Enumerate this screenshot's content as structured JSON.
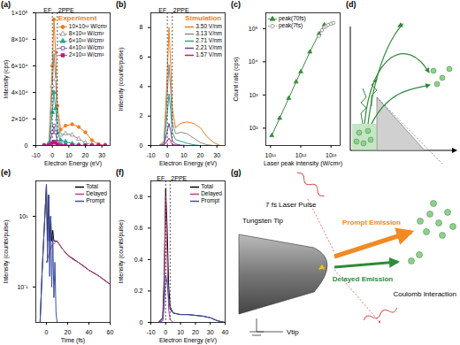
{
  "chart_data": [
    {
      "panel_label": "(a)",
      "type": "line",
      "legend_title": "Experiment",
      "legend": "top-right",
      "x_label": "Electron Energy (eV)",
      "y_label": "Intensity (cps)",
      "xlim": [
        -10,
        35
      ],
      "xticks": [
        -10,
        0,
        10,
        20,
        30
      ],
      "ylim": [
        0,
        100000
      ],
      "yticks": [
        0,
        {
          "value": 20000,
          "label": "2×10⁴"
        },
        {
          "value": 40000,
          "label": "4×10⁴"
        },
        {
          "value": 60000,
          "label": "6×10⁴"
        },
        {
          "value": 80000,
          "label": "8×10⁴"
        },
        {
          "value": 100000,
          "label": "1×10⁵"
        }
      ],
      "vlines": [
        {
          "x": 0,
          "label": "EF"
        },
        {
          "x": 3,
          "label": "2PPE"
        }
      ],
      "x": [
        -5,
        -2,
        0,
        1,
        2,
        3,
        5,
        8,
        12,
        16,
        20,
        24,
        28,
        32
      ],
      "series": [
        {
          "name": "10×10¹² W/cm²",
          "color": "#f07d1a",
          "marker": "circle",
          "values": [
            0,
            2000,
            60000,
            95000,
            70000,
            30000,
            12000,
            15000,
            16000,
            14000,
            10000,
            4000,
            1000,
            0
          ]
        },
        {
          "name": "8×10¹² W/cm²",
          "color": "#8c8c8c",
          "marker": "triangle-open",
          "values": [
            0,
            1500,
            45000,
            70000,
            50000,
            20000,
            8000,
            9000,
            8000,
            5000,
            2000,
            500,
            0,
            0
          ]
        },
        {
          "name": "6×10¹² W/cm²",
          "color": "#2ca58d",
          "marker": "triangle",
          "values": [
            0,
            1000,
            25000,
            40000,
            28000,
            10000,
            4000,
            3000,
            1500,
            500,
            0,
            0,
            0,
            0
          ]
        },
        {
          "name": "4×10¹² W/cm²",
          "color": "#6a3d9a",
          "marker": "square-open",
          "values": [
            0,
            500,
            10000,
            15000,
            10000,
            3000,
            1000,
            300,
            0,
            0,
            0,
            0,
            0,
            0
          ]
        },
        {
          "name": "2×10¹² W/cm²",
          "color": "#c2187a",
          "marker": "square",
          "values": [
            0,
            100,
            2000,
            3000,
            2000,
            500,
            100,
            0,
            0,
            0,
            0,
            0,
            0,
            0
          ]
        }
      ]
    },
    {
      "panel_label": "(b)",
      "type": "line",
      "legend_title": "Simulation",
      "legend": "top-right",
      "x_label": "Electron Energy (eV)",
      "y_label": "Intensity (counts/pulse)",
      "xlim": [
        -10,
        35
      ],
      "xticks": [
        -10,
        0,
        10,
        20,
        30
      ],
      "ylim": [
        0,
        9
      ],
      "yticks": [
        0,
        2,
        4,
        6,
        8
      ],
      "vlines": [
        {
          "x": 0,
          "label": "EF"
        },
        {
          "x": 3,
          "label": "2PPE"
        }
      ],
      "x": [
        -5,
        -2,
        0,
        1,
        2,
        3,
        5,
        8,
        12,
        16,
        20,
        24,
        28,
        32
      ],
      "series": [
        {
          "name": "3.50 V/nm",
          "color": "#f07d1a",
          "values": [
            0,
            0.3,
            5,
            8,
            5.5,
            2.5,
            1.2,
            1.5,
            1.6,
            1.5,
            1.2,
            0.6,
            0.2,
            0
          ]
        },
        {
          "name": "3.13 V/nm",
          "color": "#8c8c8c",
          "values": [
            0,
            0.2,
            3.5,
            5.5,
            3.8,
            1.6,
            0.8,
            0.9,
            0.8,
            0.5,
            0.2,
            0.05,
            0,
            0
          ]
        },
        {
          "name": "2.71 V/nm",
          "color": "#2ca58d",
          "values": [
            0,
            0.1,
            2.2,
            3.5,
            2.4,
            0.9,
            0.4,
            0.3,
            0.15,
            0.05,
            0,
            0,
            0,
            0
          ]
        },
        {
          "name": "2.21 V/nm",
          "color": "#6a3d9a",
          "values": [
            0,
            0.05,
            1,
            1.5,
            1,
            0.3,
            0.1,
            0.03,
            0,
            0,
            0,
            0,
            0,
            0
          ]
        },
        {
          "name": "1.57 V/nm",
          "color": "#c2187a",
          "values": [
            0,
            0.02,
            0.3,
            0.5,
            0.3,
            0.08,
            0.02,
            0,
            0,
            0,
            0,
            0,
            0,
            0
          ]
        }
      ]
    },
    {
      "panel_label": "(c)",
      "type": "scatter",
      "log": true,
      "legend": "top-left",
      "x_label": "Laser peak intensity (W/cm²)",
      "y_label": "Count rate (cps)",
      "xlim": [
        70000000000.0,
        20000000000000.0
      ],
      "xticks": [
        {
          "value": 100000000000.0,
          "label": "10¹¹"
        },
        {
          "value": 1000000000000.0,
          "label": "10¹²"
        },
        {
          "value": 10000000000000.0,
          "label": "10¹³"
        }
      ],
      "ylim": [
        30,
        300000
      ],
      "yticks": [
        {
          "value": 100,
          "label": "10²"
        },
        {
          "value": 1000,
          "label": "10³"
        },
        {
          "value": 10000,
          "label": "10⁴"
        },
        {
          "value": 100000,
          "label": "10⁵"
        }
      ],
      "series": [
        {
          "name": "peak(70fs)",
          "color": "#3a8a3a",
          "marker": "triangle",
          "line_style": "solid",
          "x": [
            110000000000.0,
            200000000000.0,
            400000000000.0,
            700000000000.0,
            1000000000000.0,
            2000000000000.0,
            4000000000000.0,
            6000000000000.0
          ],
          "values": [
            60,
            200,
            800,
            2500,
            5000,
            20000,
            70000,
            130000
          ]
        },
        {
          "name": "peak(7fs)",
          "color": "#888888",
          "marker": "circle-open",
          "line_style": "dashed",
          "x": [
            4000000000000.0,
            5000000000000.0,
            6000000000000.0,
            7000000000000.0,
            8000000000000.0,
            10000000000000.0,
            12000000000000.0
          ],
          "values": [
            60000,
            90000,
            110000,
            120000,
            130000,
            140000,
            150000
          ]
        }
      ]
    },
    {
      "panel_label": "(e)",
      "type": "line",
      "log": "y",
      "legend": "top-right",
      "x_label": "Time (fs)",
      "y_label": "Intensity (counts/pulse)",
      "xlim": [
        -10,
        60
      ],
      "xticks": [
        0,
        20,
        40,
        60
      ],
      "ylim": [
        0.01,
        100
      ],
      "yticks": [
        {
          "value": 0.1,
          "label": "10⁻¹"
        },
        {
          "value": 10,
          "label": "10¹"
        }
      ],
      "series": [
        {
          "name": "Total",
          "color": "#000000",
          "x": [
            -6,
            -4,
            -2,
            0,
            1,
            2,
            3,
            4,
            5,
            6,
            7,
            8,
            9,
            10,
            15,
            20,
            30,
            40,
            50,
            60
          ],
          "values": [
            0.01,
            0.3,
            5,
            80,
            2,
            40,
            2,
            10,
            2,
            4,
            2,
            2,
            2,
            2,
            1.2,
            0.8,
            0.5,
            0.3,
            0.2,
            0.12
          ]
        },
        {
          "name": "Delayed",
          "color": "#c0398a",
          "x": [
            0,
            5,
            10,
            15,
            20,
            25,
            30,
            35,
            40,
            45,
            50,
            55,
            60
          ],
          "values": [
            0.5,
            1.5,
            2,
            1.2,
            0.8,
            0.6,
            0.5,
            0.4,
            0.3,
            0.25,
            0.2,
            0.15,
            0.12
          ]
        },
        {
          "name": "Prompt",
          "color": "#3d4fa6",
          "x": [
            -6,
            -4,
            -2,
            0,
            1,
            2,
            3,
            4,
            5,
            6,
            7,
            8,
            9,
            10
          ],
          "values": [
            0.01,
            0.3,
            5,
            80,
            0.5,
            40,
            0.2,
            10,
            0.1,
            3,
            0.05,
            0.5,
            0.02,
            0.01
          ]
        }
      ]
    },
    {
      "panel_label": "(f)",
      "type": "line",
      "legend": "top-right",
      "x_label": "Electron Energy (eV)",
      "y_label": "Intensity (counts/pulse)",
      "xlim": [
        -10,
        40
      ],
      "xticks": [
        -10,
        0,
        10,
        20,
        30,
        40
      ],
      "ylim": [
        0,
        0.9
      ],
      "yticks": [
        0,
        0.2,
        0.4,
        0.6,
        0.8
      ],
      "vlines": [
        {
          "x": 0,
          "label": "EF"
        },
        {
          "x": 3,
          "label": "2PPE"
        }
      ],
      "x": [
        -10,
        -5,
        -2,
        -1,
        0,
        1,
        2,
        3,
        5,
        10,
        15,
        20,
        25,
        30,
        35,
        40
      ],
      "series": [
        {
          "name": "Total",
          "color": "#000000",
          "values": [
            0,
            0,
            0.03,
            0.3,
            0.85,
            0.6,
            0.23,
            0.1,
            0.06,
            0.05,
            0.05,
            0.045,
            0.04,
            0.03,
            0.01,
            0
          ]
        },
        {
          "name": "Delayed",
          "color": "#c0398a",
          "values": [
            0,
            0,
            0.02,
            0.2,
            0.8,
            0.4,
            0.08,
            0.02,
            0,
            0,
            0,
            0,
            0,
            0,
            0,
            0
          ]
        },
        {
          "name": "Prompt",
          "color": "#3d4fa6",
          "values": [
            0,
            0,
            0.01,
            0.1,
            0.3,
            0.25,
            0.15,
            0.08,
            0.06,
            0.05,
            0.05,
            0.045,
            0.04,
            0.03,
            0.01,
            0
          ]
        }
      ]
    }
  ],
  "diagrams": [
    {
      "panel_label": "(d)"
    },
    {
      "panel_label": "(g)",
      "labels": {
        "pulse": "7 fs Laser Pulse",
        "tip": "Tungsten Tip",
        "voltage": "Vtip",
        "prompt": "Prompt Emission",
        "delayed": "Delayed Emission",
        "coulomb": "Coulomb Interaction"
      }
    }
  ]
}
